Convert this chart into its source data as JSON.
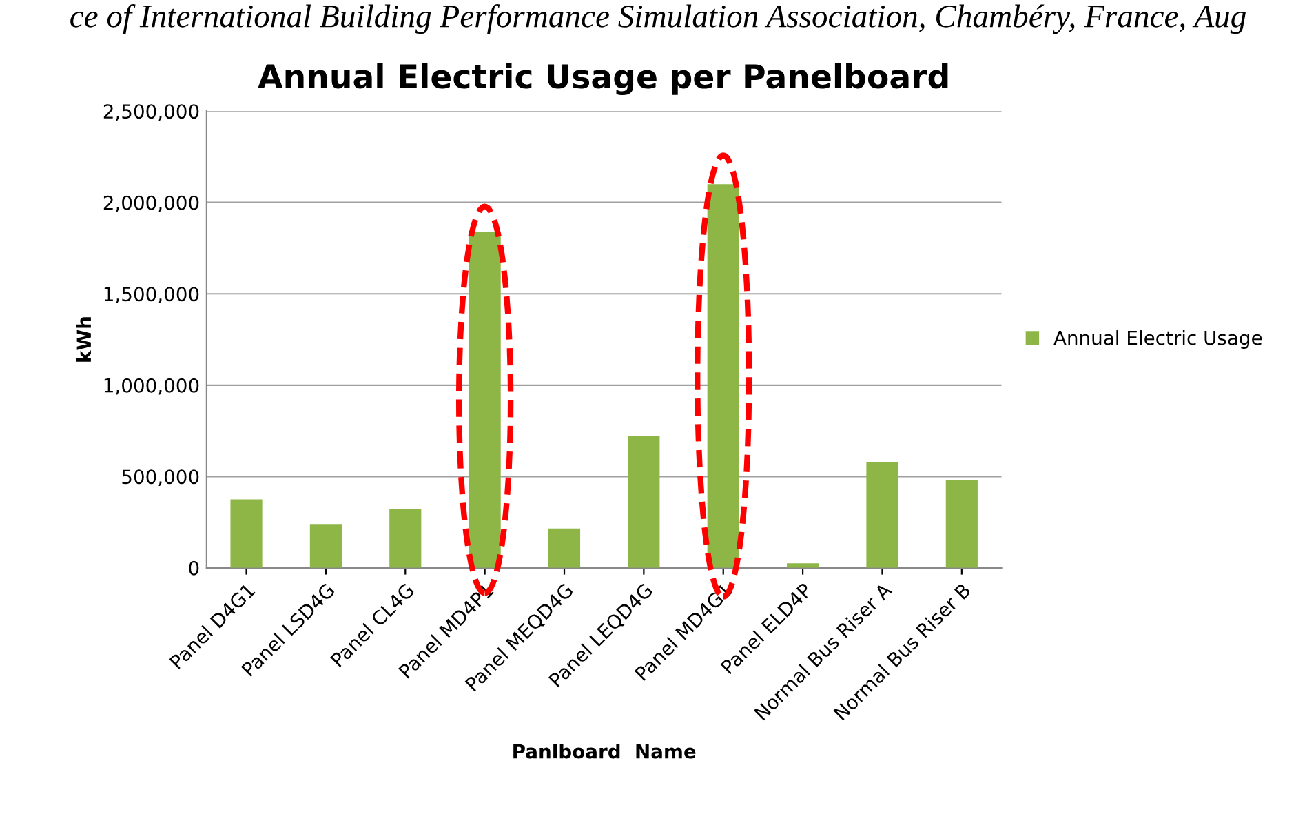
{
  "chart_data": {
    "type": "bar",
    "title": "Annual Electric Usage per Panelboard",
    "xlabel": "Panlboard  Name",
    "ylabel": "kWh",
    "annotations": [
      "ce of International Building Performance Simulation Association, Chambéry, France, Aug"
    ],
    "categories": [
      "Panel D4G1",
      "Panel LSD4G",
      "Panel CL4G",
      "Panel MD4P1",
      "Panel MEQD4G",
      "Panel LEQD4G",
      "Panel MD4G1",
      "Panel ELD4P",
      "Normal Bus Riser A",
      "Normal Bus Riser B"
    ],
    "series": [
      {
        "name": "Annual Electric Usage",
        "color": "#8db646",
        "values": [
          375000,
          240000,
          320000,
          1840000,
          215000,
          720000,
          2100000,
          25000,
          580000,
          480000
        ]
      }
    ],
    "ylim": [
      0,
      2500000
    ],
    "yticks": [
      {
        "value": 0,
        "label": "0"
      },
      {
        "value": 500000,
        "label": "500,000"
      },
      {
        "value": 1000000,
        "label": "1,000,000"
      },
      {
        "value": 1500000,
        "label": "1,500,000"
      },
      {
        "value": 2000000,
        "label": "2,000,000"
      },
      {
        "value": 2500000,
        "label": "2,500,000"
      }
    ],
    "grid": "y",
    "legend": "right"
  }
}
